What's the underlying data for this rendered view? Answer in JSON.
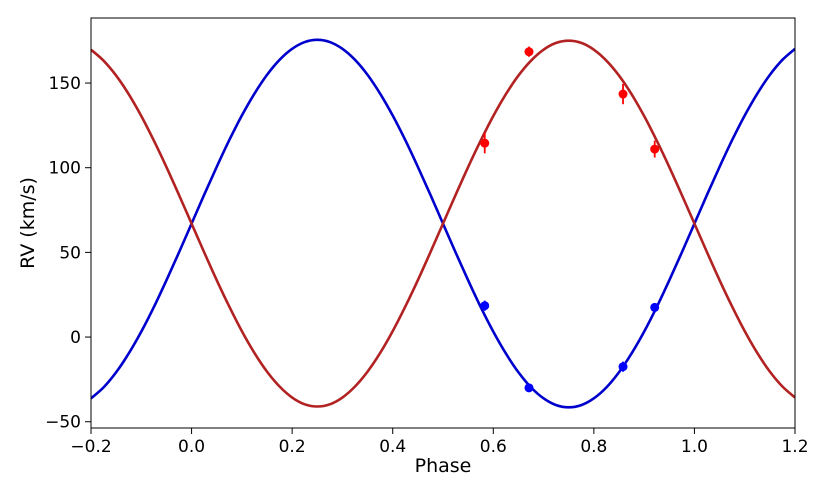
{
  "chart_data": {
    "type": "line",
    "xlabel": "Phase",
    "ylabel": "RV (km/s)",
    "xlim": [
      -0.2,
      1.2
    ],
    "ylim": [
      -53.7,
      188.4
    ],
    "xticks": [
      {
        "value": -0.2,
        "label": "−0.2"
      },
      {
        "value": 0,
        "label": "0.0"
      },
      0.2,
      0.4,
      0.6,
      0.8,
      {
        "value": 1,
        "label": "1.0"
      },
      1.2
    ],
    "yticks": [
      {
        "value": -50,
        "label": "−50"
      },
      0,
      50,
      100,
      150
    ],
    "series": [
      {
        "type": "line",
        "color": "#0000cd",
        "x": [
          -0.2,
          -0.175,
          -0.15,
          -0.125,
          -0.1,
          -0.075,
          -0.05,
          -0.025,
          0,
          0.025,
          0.05,
          0.075,
          0.1,
          0.125,
          0.15,
          0.175,
          0.2,
          0.225,
          0.25,
          0.275,
          0.3,
          0.325,
          0.35,
          0.375,
          0.4,
          0.425,
          0.45,
          0.475,
          0.5,
          0.525,
          0.55,
          0.575,
          0.6,
          0.625,
          0.65,
          0.675,
          0.7,
          0.725,
          0.75,
          0.775,
          0.8,
          0.825,
          0.85,
          0.875,
          0.9,
          0.925,
          0.95,
          0.975,
          1,
          1.025,
          1.05,
          1.075,
          1.1,
          1.125,
          1.15,
          1.175,
          1.2
        ],
        "values": [
          -36.2,
          -29.7,
          -20.8,
          -9.7,
          3.2,
          17.7,
          33.5,
          50.0,
          67,
          84.0,
          100.5,
          116.3,
          130.8,
          143.7,
          154.8,
          163.7,
          170.2,
          174.2,
          175.5,
          174.2,
          170.2,
          163.7,
          154.8,
          143.7,
          130.8,
          116.3,
          100.5,
          84.0,
          67,
          50.0,
          33.5,
          17.7,
          3.2,
          -9.7,
          -20.8,
          -29.7,
          -36.2,
          -40.2,
          -41.5,
          -40.2,
          -36.2,
          -29.7,
          -20.8,
          -9.7,
          3.2,
          17.7,
          33.5,
          50.0,
          67,
          84.0,
          100.5,
          116.3,
          130.8,
          143.7,
          154.8,
          163.7,
          170.2
        ]
      },
      {
        "type": "line",
        "color": "#b22222",
        "x": [
          -0.2,
          -0.175,
          -0.15,
          -0.125,
          -0.1,
          -0.075,
          -0.05,
          -0.025,
          0,
          0.025,
          0.05,
          0.075,
          0.1,
          0.125,
          0.15,
          0.175,
          0.2,
          0.225,
          0.25,
          0.275,
          0.3,
          0.325,
          0.35,
          0.375,
          0.4,
          0.425,
          0.45,
          0.475,
          0.5,
          0.525,
          0.55,
          0.575,
          0.6,
          0.625,
          0.65,
          0.675,
          0.7,
          0.725,
          0.75,
          0.775,
          0.8,
          0.825,
          0.85,
          0.875,
          0.9,
          0.925,
          0.95,
          0.975,
          1,
          1.025,
          1.05,
          1.075,
          1.1,
          1.125,
          1.15,
          1.175,
          1.2
        ],
        "values": [
          169.7,
          163.2,
          154.4,
          143.4,
          130.5,
          116.0,
          100.4,
          83.9,
          67,
          50.1,
          33.6,
          18.0,
          3.5,
          -9.4,
          -20.4,
          -29.2,
          -35.7,
          -39.7,
          -41,
          -39.7,
          -35.7,
          -29.2,
          -20.4,
          -9.4,
          3.5,
          18.0,
          33.6,
          50.1,
          67,
          83.9,
          100.4,
          116.0,
          130.5,
          143.4,
          154.4,
          163.2,
          169.7,
          173.7,
          175,
          173.7,
          169.7,
          163.2,
          154.4,
          143.4,
          130.5,
          116.0,
          100.4,
          83.9,
          67,
          50.1,
          33.6,
          18.0,
          3.5,
          -9.4,
          -20.4,
          -29.2,
          -35.7
        ]
      },
      {
        "type": "scatter",
        "color": "#ff0000",
        "x": [
          0.583,
          0.671,
          0.858,
          0.921
        ],
        "values": [
          114.5,
          168.5,
          143.5,
          111
        ],
        "errors": [
          6,
          3,
          6,
          5
        ]
      },
      {
        "type": "scatter",
        "color": "#0000ff",
        "x": [
          0.583,
          0.671,
          0.858,
          0.921
        ],
        "values": [
          18.5,
          -30,
          -17.5,
          17.5
        ],
        "errors": [
          3,
          2,
          3,
          2
        ]
      }
    ]
  }
}
